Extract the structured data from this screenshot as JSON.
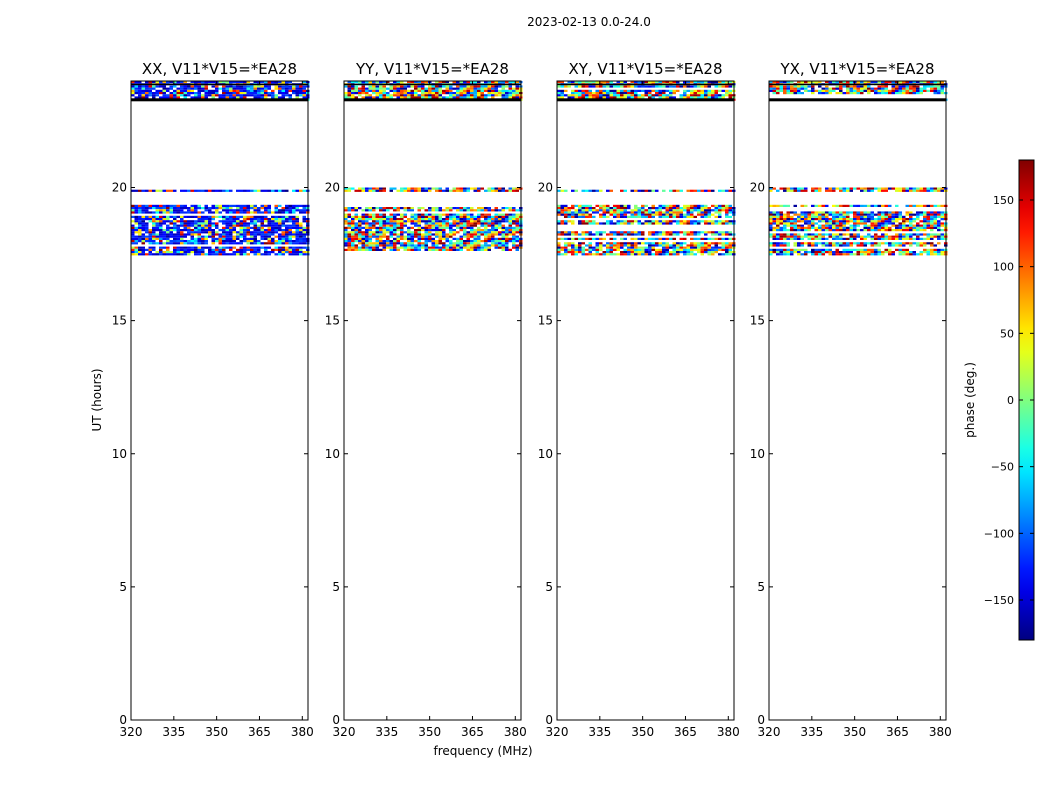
{
  "figure": {
    "suptitle": "2023-02-13 0.0-24.0"
  },
  "chart_data": {
    "type": "heatmap",
    "xlabel": "frequency (MHz)",
    "ylabel": "UT (hours)",
    "xlim": [
      320,
      382
    ],
    "ylim": [
      0,
      24
    ],
    "xticks": [
      320,
      335,
      350,
      365,
      380
    ],
    "yticks": [
      0,
      5,
      10,
      15,
      20
    ],
    "panels": [
      {
        "title": "XX, V11*V15=*EA28"
      },
      {
        "title": "YY, V11*V15=*EA28"
      },
      {
        "title": "XY, V11*V15=*EA28"
      },
      {
        "title": "YX, V11*V15=*EA28"
      }
    ],
    "data_bands_hours": [
      [
        17.5,
        19.35
      ],
      [
        19.9,
        20.0
      ],
      [
        23.3,
        24.0
      ]
    ],
    "colorbar": {
      "label": "phase (deg.)",
      "range": [
        -180,
        180
      ],
      "ticks": [
        -150,
        -100,
        -50,
        0,
        50,
        100,
        150
      ],
      "tick_labels": [
        "−150",
        "−100",
        "−50",
        "0",
        "50",
        "100",
        "150"
      ],
      "colormap": "jet"
    }
  }
}
